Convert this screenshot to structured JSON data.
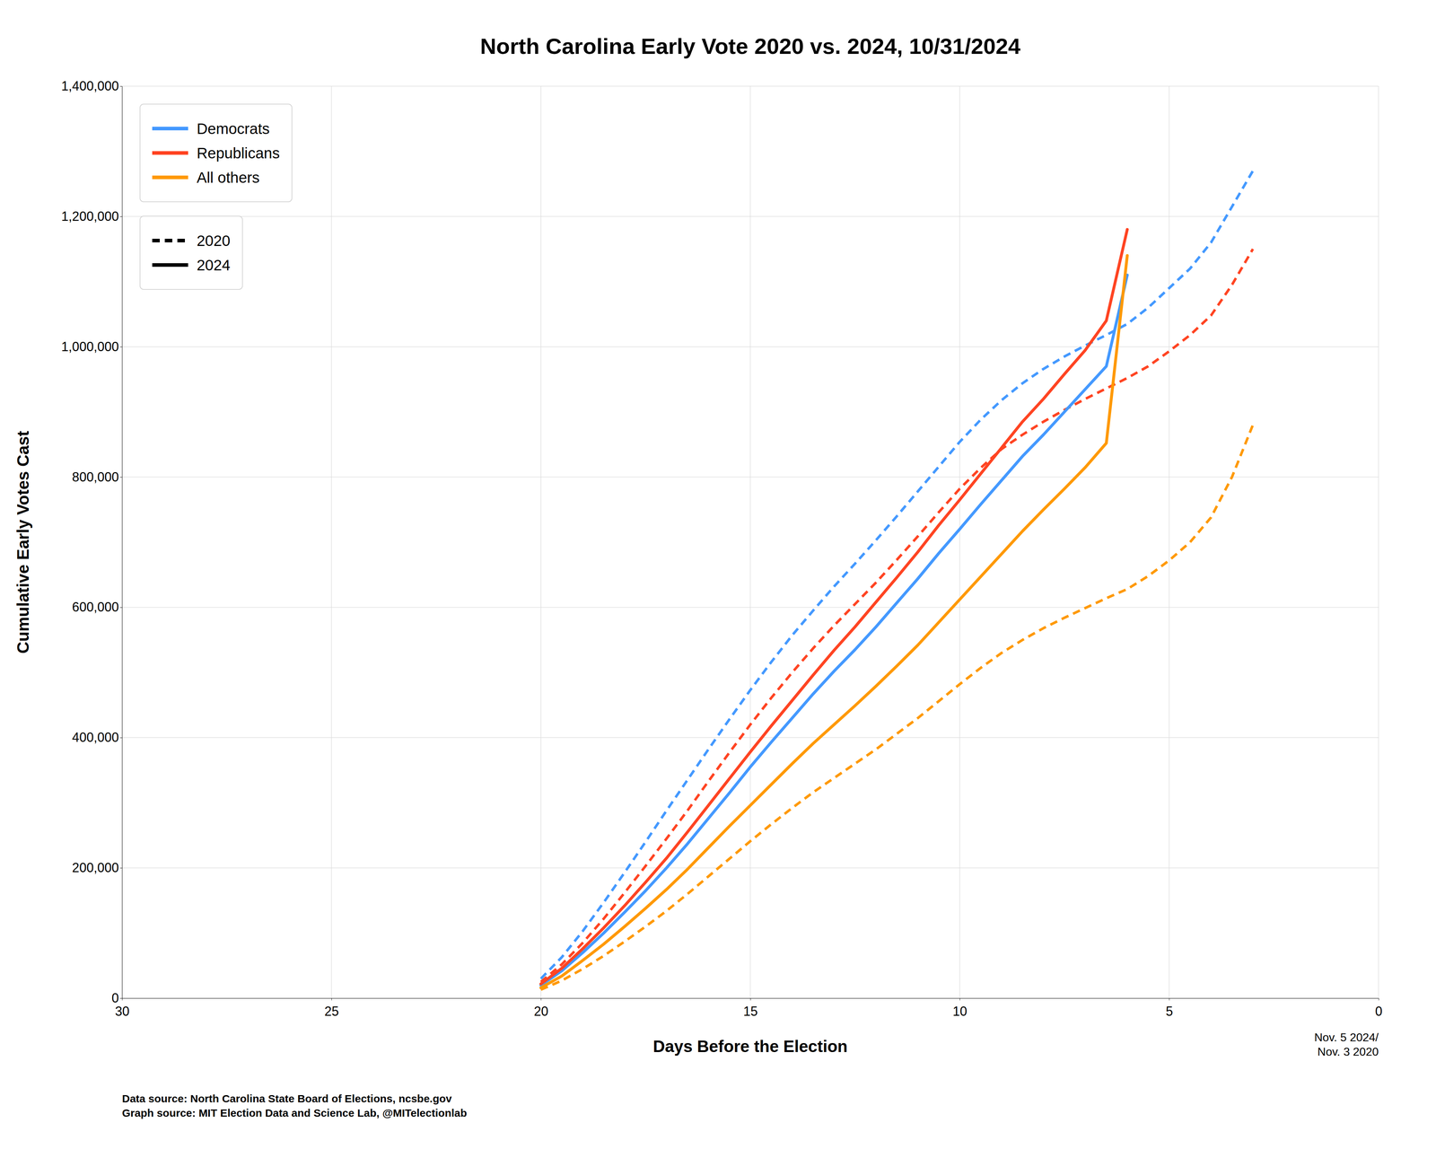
{
  "chart_data": {
    "type": "line",
    "title": "North Carolina Early Vote 2020 vs. 2024, 10/31/2024",
    "xlabel": "Days Before the Election",
    "ylabel": "Cumulative Early Votes Cast",
    "xlim": [
      30,
      0
    ],
    "ylim": [
      0,
      1400000
    ],
    "xticks": [
      30,
      25,
      20,
      15,
      10,
      5,
      0
    ],
    "yticks": [
      0,
      {
        "value": 200000,
        "label": "200,000"
      },
      {
        "value": 400000,
        "label": "400,000"
      },
      {
        "value": 600000,
        "label": "600,000"
      },
      {
        "value": 800000,
        "label": "800,000"
      },
      {
        "value": 1000000,
        "label": "1,000,000"
      },
      {
        "value": 1200000,
        "label": "1,200,000"
      },
      {
        "value": 1400000,
        "label": "1,400,000"
      }
    ],
    "grid": true,
    "legend": "upper left",
    "legends": [
      [
        {
          "name": "Democrats",
          "color": "#4499FF"
        },
        {
          "name": "Republicans",
          "color": "#FF4422"
        },
        {
          "name": "All others",
          "color": "#FF9900"
        }
      ],
      [
        {
          "name": "2020",
          "line_style": "dashed"
        },
        {
          "name": "2024",
          "line_style": "solid"
        }
      ]
    ],
    "annotation": "Nov. 5 2024/\nNov. 3 2020",
    "source": "Data source: North Carolina State Board of Elections, ncsbe.gov\nGraph source: MIT Election Data and Science Lab, @MITelectionlab",
    "series": [
      {
        "color": "#4499FF",
        "line_style": "solid",
        "x": [
          20.0,
          19.5,
          19.0,
          18.5,
          18.0,
          17.5,
          17.0,
          16.5,
          16.0,
          15.5,
          15.0,
          14.5,
          14.0,
          13.5,
          13.0,
          12.5,
          12.0,
          11.5,
          11.0,
          10.5,
          10.0,
          9.5,
          9.0,
          8.5,
          8.0,
          7.5,
          7.0,
          6.5,
          6.0
        ],
        "values": [
          20000,
          42000,
          70000,
          100000,
          132000,
          165000,
          200000,
          237000,
          276000,
          315000,
          355000,
          393000,
          430000,
          467000,
          502000,
          535000,
          570000,
          607000,
          644000,
          683000,
          720000,
          758000,
          795000,
          832000,
          865000,
          900000,
          935000,
          970000,
          1110000
        ]
      },
      {
        "color": "#FF4422",
        "line_style": "solid",
        "x": [
          20.0,
          19.5,
          19.0,
          18.5,
          18.0,
          17.5,
          17.0,
          16.5,
          16.0,
          15.5,
          15.0,
          14.5,
          14.0,
          13.5,
          13.0,
          12.5,
          12.0,
          11.5,
          11.0,
          10.5,
          10.0,
          9.5,
          9.0,
          8.5,
          8.0,
          7.5,
          7.0,
          6.5,
          6.0
        ],
        "values": [
          22000,
          46000,
          76000,
          108000,
          142000,
          178000,
          215000,
          255000,
          296000,
          337000,
          378000,
          418000,
          457000,
          496000,
          534000,
          570000,
          608000,
          646000,
          685000,
          726000,
          765000,
          805000,
          845000,
          885000,
          920000,
          958000,
          995000,
          1040000,
          1180000
        ]
      },
      {
        "color": "#FF9900",
        "line_style": "solid",
        "x": [
          20.0,
          19.5,
          19.0,
          18.5,
          18.0,
          17.5,
          17.0,
          16.5,
          16.0,
          15.5,
          15.0,
          14.5,
          14.0,
          13.5,
          13.0,
          12.5,
          12.0,
          11.5,
          11.0,
          10.5,
          10.0,
          9.5,
          9.0,
          8.5,
          8.0,
          7.5,
          7.0,
          6.5,
          6.0
        ],
        "values": [
          16000,
          34000,
          58000,
          83000,
          110000,
          138000,
          167000,
          198000,
          231000,
          264000,
          296000,
          328000,
          360000,
          391000,
          420000,
          449000,
          479000,
          510000,
          542000,
          577000,
          612000,
          647000,
          682000,
          717000,
          750000,
          782000,
          815000,
          852000,
          1140000
        ]
      },
      {
        "color": "#4499FF",
        "line_style": "dashed",
        "x": [
          20.0,
          19.5,
          19.0,
          18.5,
          18.0,
          17.5,
          17.0,
          16.5,
          16.0,
          15.5,
          15.0,
          14.5,
          14.0,
          13.5,
          13.0,
          12.5,
          12.0,
          11.5,
          11.0,
          10.5,
          10.0,
          9.5,
          9.0,
          8.5,
          8.0,
          7.5,
          7.0,
          6.5,
          6.0,
          5.5,
          5.0,
          4.5,
          4.0,
          3.5,
          3.0
        ],
        "values": [
          30000,
          63000,
          103000,
          147000,
          193000,
          240000,
          288000,
          335000,
          382000,
          428000,
          473000,
          516000,
          557000,
          595000,
          632000,
          667000,
          703000,
          740000,
          778000,
          816000,
          854000,
          888000,
          918000,
          944000,
          966000,
          985000,
          1002000,
          1018000,
          1035000,
          1060000,
          1090000,
          1120000,
          1160000,
          1215000,
          1270000
        ]
      },
      {
        "color": "#FF4422",
        "line_style": "dashed",
        "x": [
          20.0,
          19.5,
          19.0,
          18.5,
          18.0,
          17.5,
          17.0,
          16.5,
          16.0,
          15.5,
          15.0,
          14.5,
          14.0,
          13.5,
          13.0,
          12.5,
          12.0,
          11.5,
          11.0,
          10.5,
          10.0,
          9.5,
          9.0,
          8.5,
          8.0,
          7.5,
          7.0,
          6.5,
          6.0,
          5.5,
          5.0,
          4.5,
          4.0,
          3.5,
          3.0
        ],
        "values": [
          25000,
          52000,
          85000,
          122000,
          162000,
          203000,
          245000,
          288000,
          333000,
          377000,
          420000,
          461000,
          500000,
          537000,
          572000,
          605000,
          638000,
          673000,
          709000,
          746000,
          782000,
          814000,
          843000,
          865000,
          885000,
          903000,
          920000,
          936000,
          952000,
          970000,
          993000,
          1018000,
          1048000,
          1095000,
          1150000
        ]
      },
      {
        "color": "#FF9900",
        "line_style": "dashed",
        "x": [
          20.0,
          19.5,
          19.0,
          18.5,
          18.0,
          17.5,
          17.0,
          16.5,
          16.0,
          15.5,
          15.0,
          14.5,
          14.0,
          13.5,
          13.0,
          12.5,
          12.0,
          11.5,
          11.0,
          10.5,
          10.0,
          9.5,
          9.0,
          8.5,
          8.0,
          7.5,
          7.0,
          6.5,
          6.0,
          5.5,
          5.0,
          4.5,
          4.0,
          3.5,
          3.0
        ],
        "values": [
          13000,
          27000,
          45000,
          65000,
          87000,
          110000,
          134000,
          160000,
          187000,
          214000,
          241000,
          267000,
          292000,
          316000,
          338000,
          360000,
          382000,
          406000,
          430000,
          456000,
          482000,
          507000,
          530000,
          550000,
          568000,
          584000,
          599000,
          614000,
          628000,
          648000,
          672000,
          700000,
          738000,
          800000,
          880000
        ]
      }
    ]
  }
}
